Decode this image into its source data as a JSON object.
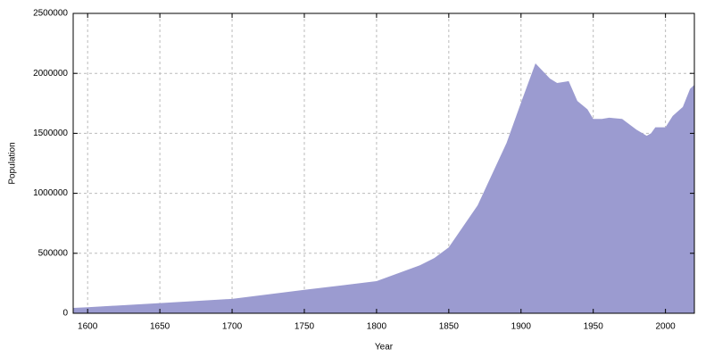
{
  "chart_data": {
    "type": "area",
    "x_label": "Year",
    "y_label": "Population",
    "x": [
      1590,
      1600,
      1650,
      1700,
      1750,
      1800,
      1830,
      1840,
      1850,
      1870,
      1890,
      1900,
      1910,
      1920,
      1925,
      1933,
      1939,
      1946,
      1950,
      1956,
      1961,
      1970,
      1980,
      1987,
      1990,
      1993,
      2000,
      2005,
      2012,
      2017,
      2020
    ],
    "series": [
      {
        "name": "Population",
        "color": "#9b9bd0",
        "values": [
          45000,
          50000,
          85000,
          120000,
          195000,
          268000,
          400000,
          460000,
          550000,
          900000,
          1420000,
          1756000,
          2083000,
          1957000,
          1920000,
          1935000,
          1770000,
          1700000,
          1620000,
          1620000,
          1630000,
          1620000,
          1530000,
          1480000,
          1500000,
          1550000,
          1550000,
          1645000,
          1720000,
          1870000,
          1905000
        ]
      }
    ],
    "xlim": [
      1590,
      2020
    ],
    "xticks": [
      1600,
      1650,
      1700,
      1750,
      1800,
      1850,
      1900,
      1950,
      2000
    ],
    "ylim": [
      0,
      2500000
    ],
    "yticks": [
      0,
      500000,
      1000000,
      1500000,
      2000000,
      2500000
    ],
    "grid": true
  }
}
